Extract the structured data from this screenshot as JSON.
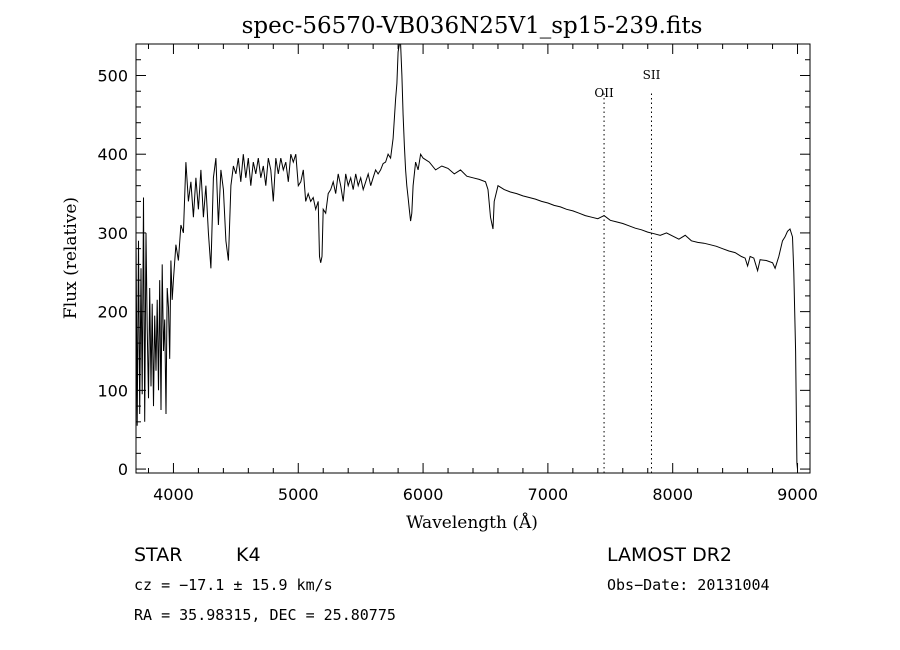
{
  "chart_data": {
    "type": "line",
    "title": "spec-56570-VB036N25V1_sp15-239.fits",
    "xlabel": "Wavelength (Å)",
    "ylabel": "Flux (relative)",
    "xlim": [
      3700,
      9100
    ],
    "ylim": [
      -5,
      540
    ],
    "x_ticks": [
      4000,
      5000,
      6000,
      7000,
      8000,
      9000
    ],
    "y_ticks": [
      0,
      100,
      200,
      300,
      400,
      500
    ],
    "grid": false,
    "series": [
      {
        "values": [
          [
            3700,
            300
          ],
          [
            3710,
            55
          ],
          [
            3720,
            290
          ],
          [
            3730,
            70
          ],
          [
            3740,
            255
          ],
          [
            3750,
            95
          ],
          [
            3760,
            345
          ],
          [
            3770,
            60
          ],
          [
            3780,
            300
          ],
          [
            3790,
            180
          ],
          [
            3800,
            90
          ],
          [
            3810,
            230
          ],
          [
            3820,
            105
          ],
          [
            3830,
            210
          ],
          [
            3840,
            80
          ],
          [
            3850,
            195
          ],
          [
            3860,
            125
          ],
          [
            3870,
            215
          ],
          [
            3880,
            100
          ],
          [
            3890,
            240
          ],
          [
            3900,
            75
          ],
          [
            3910,
            260
          ],
          [
            3920,
            150
          ],
          [
            3930,
            190
          ],
          [
            3940,
            70
          ],
          [
            3950,
            230
          ],
          [
            3960,
            205
          ],
          [
            3970,
            140
          ],
          [
            3980,
            265
          ],
          [
            3990,
            215
          ],
          [
            4000,
            240
          ],
          [
            4020,
            285
          ],
          [
            4040,
            265
          ],
          [
            4060,
            310
          ],
          [
            4080,
            300
          ],
          [
            4100,
            390
          ],
          [
            4120,
            340
          ],
          [
            4140,
            365
          ],
          [
            4160,
            320
          ],
          [
            4180,
            370
          ],
          [
            4200,
            330
          ],
          [
            4220,
            380
          ],
          [
            4240,
            320
          ],
          [
            4260,
            360
          ],
          [
            4280,
            300
          ],
          [
            4300,
            255
          ],
          [
            4320,
            370
          ],
          [
            4340,
            395
          ],
          [
            4360,
            310
          ],
          [
            4380,
            380
          ],
          [
            4400,
            355
          ],
          [
            4420,
            290
          ],
          [
            4440,
            265
          ],
          [
            4460,
            360
          ],
          [
            4480,
            385
          ],
          [
            4500,
            375
          ],
          [
            4520,
            395
          ],
          [
            4540,
            365
          ],
          [
            4560,
            400
          ],
          [
            4580,
            370
          ],
          [
            4600,
            395
          ],
          [
            4620,
            360
          ],
          [
            4640,
            390
          ],
          [
            4660,
            375
          ],
          [
            4680,
            395
          ],
          [
            4700,
            370
          ],
          [
            4720,
            385
          ],
          [
            4740,
            360
          ],
          [
            4760,
            395
          ],
          [
            4780,
            380
          ],
          [
            4800,
            340
          ],
          [
            4820,
            395
          ],
          [
            4840,
            375
          ],
          [
            4860,
            395
          ],
          [
            4880,
            380
          ],
          [
            4900,
            390
          ],
          [
            4920,
            365
          ],
          [
            4940,
            400
          ],
          [
            4960,
            390
          ],
          [
            4980,
            400
          ],
          [
            5000,
            360
          ],
          [
            5020,
            365
          ],
          [
            5040,
            380
          ],
          [
            5060,
            340
          ],
          [
            5080,
            350
          ],
          [
            5100,
            340
          ],
          [
            5120,
            345
          ],
          [
            5140,
            330
          ],
          [
            5160,
            340
          ],
          [
            5170,
            270
          ],
          [
            5180,
            262
          ],
          [
            5190,
            270
          ],
          [
            5200,
            330
          ],
          [
            5220,
            325
          ],
          [
            5240,
            350
          ],
          [
            5260,
            355
          ],
          [
            5280,
            365
          ],
          [
            5300,
            350
          ],
          [
            5320,
            375
          ],
          [
            5340,
            360
          ],
          [
            5360,
            340
          ],
          [
            5380,
            375
          ],
          [
            5400,
            360
          ],
          [
            5420,
            370
          ],
          [
            5440,
            355
          ],
          [
            5460,
            375
          ],
          [
            5480,
            360
          ],
          [
            5500,
            370
          ],
          [
            5520,
            355
          ],
          [
            5540,
            365
          ],
          [
            5560,
            375
          ],
          [
            5580,
            360
          ],
          [
            5600,
            370
          ],
          [
            5620,
            380
          ],
          [
            5640,
            375
          ],
          [
            5660,
            380
          ],
          [
            5680,
            388
          ],
          [
            5700,
            390
          ],
          [
            5720,
            400
          ],
          [
            5740,
            395
          ],
          [
            5760,
            420
          ],
          [
            5780,
            470
          ],
          [
            5790,
            490
          ],
          [
            5800,
            530
          ],
          [
            5810,
            545
          ],
          [
            5820,
            545
          ],
          [
            5830,
            500
          ],
          [
            5840,
            450
          ],
          [
            5850,
            410
          ],
          [
            5860,
            380
          ],
          [
            5870,
            360
          ],
          [
            5880,
            345
          ],
          [
            5890,
            330
          ],
          [
            5900,
            315
          ],
          [
            5910,
            325
          ],
          [
            5920,
            360
          ],
          [
            5940,
            390
          ],
          [
            5960,
            380
          ],
          [
            5980,
            400
          ],
          [
            6000,
            395
          ],
          [
            6050,
            390
          ],
          [
            6100,
            380
          ],
          [
            6150,
            385
          ],
          [
            6200,
            382
          ],
          [
            6250,
            375
          ],
          [
            6300,
            380
          ],
          [
            6350,
            372
          ],
          [
            6400,
            370
          ],
          [
            6450,
            368
          ],
          [
            6500,
            365
          ],
          [
            6520,
            355
          ],
          [
            6540,
            320
          ],
          [
            6560,
            305
          ],
          [
            6570,
            340
          ],
          [
            6600,
            360
          ],
          [
            6650,
            355
          ],
          [
            6700,
            352
          ],
          [
            6750,
            350
          ],
          [
            6800,
            347
          ],
          [
            6850,
            345
          ],
          [
            6900,
            343
          ],
          [
            6950,
            340
          ],
          [
            7000,
            338
          ],
          [
            7050,
            335
          ],
          [
            7100,
            333
          ],
          [
            7150,
            330
          ],
          [
            7200,
            328
          ],
          [
            7250,
            325
          ],
          [
            7300,
            322
          ],
          [
            7350,
            320
          ],
          [
            7400,
            318
          ],
          [
            7450,
            322
          ],
          [
            7500,
            316
          ],
          [
            7550,
            314
          ],
          [
            7600,
            312
          ],
          [
            7650,
            309
          ],
          [
            7700,
            306
          ],
          [
            7750,
            304
          ],
          [
            7800,
            301
          ],
          [
            7850,
            299
          ],
          [
            7900,
            297
          ],
          [
            7950,
            300
          ],
          [
            8000,
            296
          ],
          [
            8050,
            292
          ],
          [
            8100,
            297
          ],
          [
            8150,
            290
          ],
          [
            8200,
            288
          ],
          [
            8250,
            287
          ],
          [
            8300,
            285
          ],
          [
            8350,
            283
          ],
          [
            8400,
            280
          ],
          [
            8450,
            277
          ],
          [
            8500,
            275
          ],
          [
            8550,
            270
          ],
          [
            8580,
            268
          ],
          [
            8600,
            258
          ],
          [
            8620,
            270
          ],
          [
            8650,
            268
          ],
          [
            8680,
            252
          ],
          [
            8700,
            266
          ],
          [
            8750,
            265
          ],
          [
            8800,
            262
          ],
          [
            8820,
            255
          ],
          [
            8850,
            270
          ],
          [
            8880,
            290
          ],
          [
            8900,
            295
          ],
          [
            8920,
            302
          ],
          [
            8940,
            305
          ],
          [
            8960,
            295
          ],
          [
            8970,
            250
          ],
          [
            8985,
            150
          ],
          [
            8995,
            8
          ],
          [
            9000,
            0
          ]
        ]
      }
    ],
    "annotations": [
      {
        "label": "OII",
        "x": 7450
      },
      {
        "label": "SII",
        "x": 7830
      }
    ]
  },
  "info": {
    "class": "STAR",
    "subclass": "K4",
    "cz": "cz = −17.1 ± 15.9 km/s",
    "radec": "RA =  35.98315, DEC =  25.80775",
    "survey": "LAMOST DR2",
    "obsdate": "Obs−Date: 20131004"
  }
}
